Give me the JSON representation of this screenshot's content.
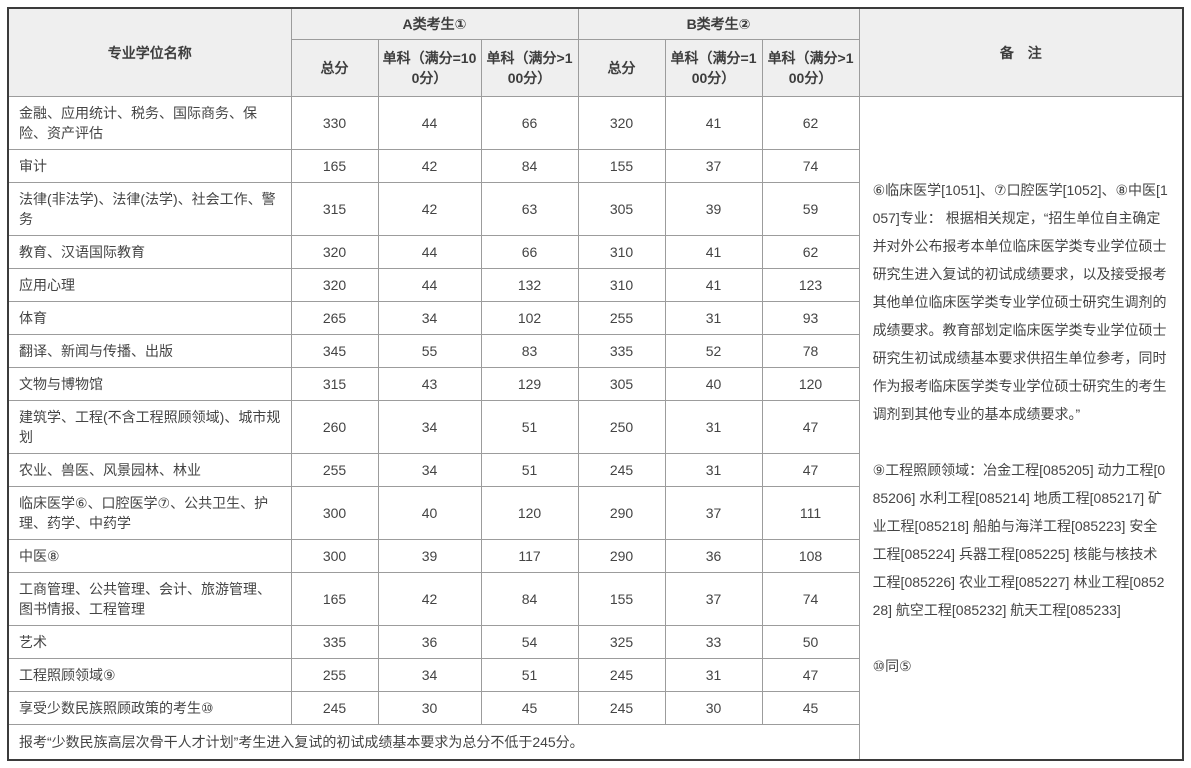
{
  "table": {
    "header": {
      "col_major": "专业学位名称",
      "group_a": "A类考生①",
      "group_b": "B类考生②",
      "remark": "备　注",
      "sub": [
        "总分",
        "单科（满分=100分）",
        "单科（满分>100分）",
        "总分",
        "单科（满分=100分）",
        "单科（满分>100分）"
      ]
    },
    "rows": [
      {
        "name": "金融、应用统计、税务、国际商务、保险、资产评估",
        "a": [
          "330",
          "44",
          "66"
        ],
        "b": [
          "320",
          "41",
          "62"
        ]
      },
      {
        "name": "审计",
        "a": [
          "165",
          "42",
          "84"
        ],
        "b": [
          "155",
          "37",
          "74"
        ]
      },
      {
        "name": "法律(非法学)、法律(法学)、社会工作、警务",
        "a": [
          "315",
          "42",
          "63"
        ],
        "b": [
          "305",
          "39",
          "59"
        ]
      },
      {
        "name": "教育、汉语国际教育",
        "a": [
          "320",
          "44",
          "66"
        ],
        "b": [
          "310",
          "41",
          "62"
        ]
      },
      {
        "name": "应用心理",
        "a": [
          "320",
          "44",
          "132"
        ],
        "b": [
          "310",
          "41",
          "123"
        ]
      },
      {
        "name": "体育",
        "a": [
          "265",
          "34",
          "102"
        ],
        "b": [
          "255",
          "31",
          "93"
        ]
      },
      {
        "name": "翻译、新闻与传播、出版",
        "a": [
          "345",
          "55",
          "83"
        ],
        "b": [
          "335",
          "52",
          "78"
        ]
      },
      {
        "name": "文物与博物馆",
        "a": [
          "315",
          "43",
          "129"
        ],
        "b": [
          "305",
          "40",
          "120"
        ]
      },
      {
        "name": "建筑学、工程(不含工程照顾领域)、城市规划",
        "a": [
          "260",
          "34",
          "51"
        ],
        "b": [
          "250",
          "31",
          "47"
        ]
      },
      {
        "name": "农业、兽医、风景园林、林业",
        "a": [
          "255",
          "34",
          "51"
        ],
        "b": [
          "245",
          "31",
          "47"
        ]
      },
      {
        "name": "临床医学⑥、口腔医学⑦、公共卫生、护理、药学、中药学",
        "a": [
          "300",
          "40",
          "120"
        ],
        "b": [
          "290",
          "37",
          "111"
        ]
      },
      {
        "name": "中医⑧",
        "a": [
          "300",
          "39",
          "117"
        ],
        "b": [
          "290",
          "36",
          "108"
        ]
      },
      {
        "name": "工商管理、公共管理、会计、旅游管理、图书情报、工程管理",
        "a": [
          "165",
          "42",
          "84"
        ],
        "b": [
          "155",
          "37",
          "74"
        ]
      },
      {
        "name": "艺术",
        "a": [
          "335",
          "36",
          "54"
        ],
        "b": [
          "325",
          "33",
          "50"
        ]
      },
      {
        "name": "工程照顾领域⑨",
        "a": [
          "255",
          "34",
          "51"
        ],
        "b": [
          "245",
          "31",
          "47"
        ]
      },
      {
        "name": "享受少数民族照顾政策的考生⑩",
        "a": [
          "245",
          "30",
          "45"
        ],
        "b": [
          "245",
          "30",
          "45"
        ]
      }
    ],
    "remarks": [
      "⑥临床医学[1051]、⑦口腔医学[1052]、⑧中医[1057]专业： 根据相关规定，“招生单位自主确定并对外公布报考本单位临床医学类专业学位硕士研究生进入复试的初试成绩要求，以及接受报考其他单位临床医学类专业学位硕士研究生调剂的成绩要求。教育部划定临床医学类专业学位硕士研究生初试成绩基本要求供招生单位参考，同时作为报考临床医学类专业学位硕士研究生的考生调剂到其他专业的基本成绩要求。”",
      "⑨工程照顾领域：冶金工程[085205] 动力工程[085206] 水利工程[085214] 地质工程[085217] 矿业工程[085218] 船舶与海洋工程[085223] 安全工程[085224] 兵器工程[085225] 核能与核技术工程[085226] 农业工程[085227] 林业工程[085228] 航空工程[085232] 航天工程[085233]",
      "⑩同⑤"
    ],
    "footer": "报考“少数民族高层次骨干人才计划”考生进入复试的初试成绩基本要求为总分不低于245分。"
  },
  "colors": {
    "header_bg": "#efefef",
    "border_inner": "#9c9c9c",
    "border_outer": "#3b3b3b",
    "text": "#444444"
  }
}
